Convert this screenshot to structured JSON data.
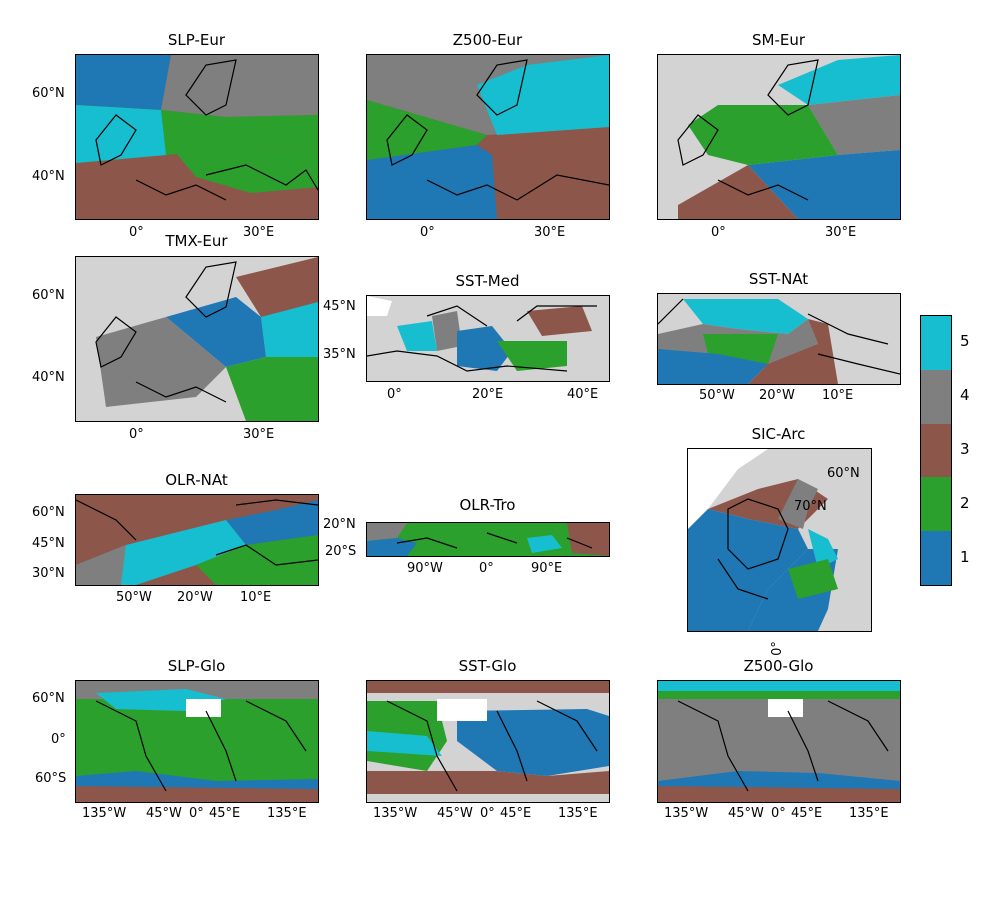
{
  "colorbar": {
    "levels": [
      {
        "label": "1",
        "color": "#1f77b4"
      },
      {
        "label": "2",
        "color": "#2ca02c"
      },
      {
        "label": "3",
        "color": "#8c564b"
      },
      {
        "label": "4",
        "color": "#7f7f7f"
      },
      {
        "label": "5",
        "color": "#17becf"
      }
    ]
  },
  "land_color": "#d3d3d3",
  "chart_data": [
    {
      "type": "heatmap",
      "title": "SLP-Eur",
      "xticks": [
        "0°",
        "30°E"
      ],
      "yticks": [
        "60°N",
        "40°N"
      ]
    },
    {
      "type": "heatmap",
      "title": "Z500-Eur",
      "xticks": [
        "0°",
        "30°E"
      ],
      "yticks": []
    },
    {
      "type": "heatmap",
      "title": "SM-Eur",
      "xticks": [
        "0°",
        "30°E"
      ],
      "yticks": []
    },
    {
      "type": "heatmap",
      "title": "TMX-Eur",
      "xticks": [
        "0°",
        "30°E"
      ],
      "yticks": [
        "60°N",
        "40°N"
      ]
    },
    {
      "type": "heatmap",
      "title": "SST-Med",
      "xticks": [
        "0°",
        "20°E",
        "40°E"
      ],
      "yticks": [
        "45°N",
        "35°N"
      ]
    },
    {
      "type": "heatmap",
      "title": "SST-NAt",
      "xticks": [
        "50°W",
        "20°W",
        "10°E"
      ],
      "yticks": []
    },
    {
      "type": "heatmap",
      "title": "OLR-NAt",
      "xticks": [
        "50°W",
        "20°W",
        "10°E"
      ],
      "yticks": [
        "60°N",
        "45°N",
        "30°N"
      ]
    },
    {
      "type": "heatmap",
      "title": "OLR-Tro",
      "xticks": [
        "90°W",
        "0°",
        "90°E"
      ],
      "yticks": [
        "20°N",
        "20°S"
      ]
    },
    {
      "type": "heatmap",
      "title": "SIC-Arc",
      "xticks": [
        "0°"
      ],
      "yticks": [
        "60°N",
        "70°N"
      ]
    },
    {
      "type": "heatmap",
      "title": "SLP-Glo",
      "xticks": [
        "135°W",
        "45°W",
        "0°",
        "45°E",
        "135°E"
      ],
      "yticks": [
        "60°N",
        "0°",
        "60°S"
      ]
    },
    {
      "type": "heatmap",
      "title": "SST-Glo",
      "xticks": [
        "135°W",
        "45°W",
        "0°",
        "45°E",
        "135°E"
      ],
      "yticks": []
    },
    {
      "type": "heatmap",
      "title": "Z500-Glo",
      "xticks": [
        "135°W",
        "45°W",
        "0°",
        "45°E",
        "135°E"
      ],
      "yticks": []
    }
  ]
}
